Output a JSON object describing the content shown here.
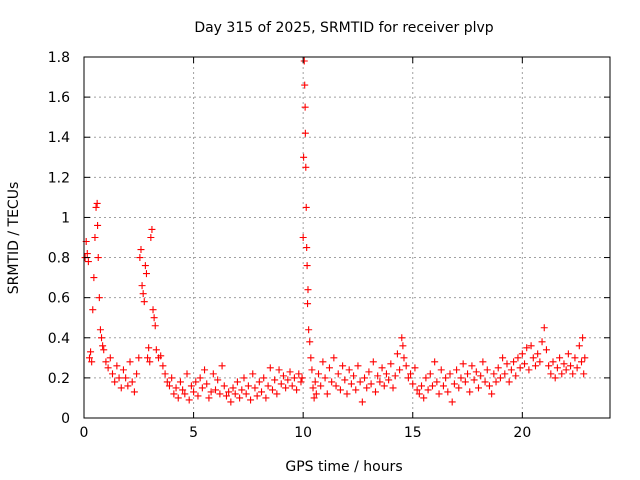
{
  "chart_data": {
    "type": "scatter",
    "title": "Day 315 of 2025, SRMTID for receiver plvp",
    "xlabel": "GPS time / hours",
    "ylabel": "SRMTID / TECUs",
    "xlim": [
      0,
      24
    ],
    "ylim": [
      0,
      1.8
    ],
    "xticks": [
      0,
      5,
      10,
      15,
      20
    ],
    "xtick_labels": [
      "0",
      "5",
      "10",
      "15",
      "20"
    ],
    "yticks": [
      0,
      0.2,
      0.4,
      0.6,
      0.8,
      1.0,
      1.2,
      1.4,
      1.6,
      1.8
    ],
    "ytick_labels": [
      "0",
      "0.2",
      "0.4",
      "0.6",
      "0.8",
      "1",
      "1.2",
      "1.4",
      "1.6",
      "1.8"
    ],
    "grid": true,
    "marker": "plus",
    "series": [
      {
        "name": "SRMTID",
        "color": "#ff0000",
        "points": [
          [
            0.05,
            0.8
          ],
          [
            0.1,
            0.88
          ],
          [
            0.15,
            0.82
          ],
          [
            0.2,
            0.78
          ],
          [
            0.25,
            0.3
          ],
          [
            0.3,
            0.33
          ],
          [
            0.35,
            0.28
          ],
          [
            0.4,
            0.54
          ],
          [
            0.45,
            0.7
          ],
          [
            0.5,
            0.9
          ],
          [
            0.55,
            1.05
          ],
          [
            0.6,
            1.07
          ],
          [
            0.62,
            0.96
          ],
          [
            0.65,
            0.8
          ],
          [
            0.7,
            0.6
          ],
          [
            0.75,
            0.44
          ],
          [
            0.8,
            0.4
          ],
          [
            0.85,
            0.36
          ],
          [
            0.9,
            0.34
          ],
          [
            1.0,
            0.28
          ],
          [
            1.1,
            0.25
          ],
          [
            1.2,
            0.3
          ],
          [
            1.3,
            0.22
          ],
          [
            1.4,
            0.18
          ],
          [
            1.5,
            0.26
          ],
          [
            1.6,
            0.2
          ],
          [
            1.7,
            0.15
          ],
          [
            1.8,
            0.24
          ],
          [
            1.9,
            0.2
          ],
          [
            2.0,
            0.16
          ],
          [
            2.1,
            0.28
          ],
          [
            2.2,
            0.18
          ],
          [
            2.3,
            0.13
          ],
          [
            2.4,
            0.22
          ],
          [
            2.5,
            0.3
          ],
          [
            2.55,
            0.8
          ],
          [
            2.6,
            0.84
          ],
          [
            2.65,
            0.66
          ],
          [
            2.7,
            0.62
          ],
          [
            2.75,
            0.58
          ],
          [
            2.8,
            0.76
          ],
          [
            2.85,
            0.72
          ],
          [
            2.9,
            0.3
          ],
          [
            2.95,
            0.35
          ],
          [
            3.0,
            0.28
          ],
          [
            3.05,
            0.9
          ],
          [
            3.1,
            0.94
          ],
          [
            3.15,
            0.54
          ],
          [
            3.2,
            0.5
          ],
          [
            3.25,
            0.46
          ],
          [
            3.3,
            0.34
          ],
          [
            3.4,
            0.3
          ],
          [
            3.5,
            0.31
          ],
          [
            3.6,
            0.26
          ],
          [
            3.7,
            0.22
          ],
          [
            3.8,
            0.18
          ],
          [
            3.9,
            0.16
          ],
          [
            4.0,
            0.2
          ],
          [
            4.1,
            0.12
          ],
          [
            4.2,
            0.15
          ],
          [
            4.3,
            0.1
          ],
          [
            4.4,
            0.18
          ],
          [
            4.5,
            0.14
          ],
          [
            4.6,
            0.12
          ],
          [
            4.7,
            0.22
          ],
          [
            4.8,
            0.09
          ],
          [
            4.9,
            0.16
          ],
          [
            5.0,
            0.13
          ],
          [
            5.1,
            0.18
          ],
          [
            5.2,
            0.11
          ],
          [
            5.3,
            0.2
          ],
          [
            5.4,
            0.15
          ],
          [
            5.5,
            0.24
          ],
          [
            5.6,
            0.17
          ],
          [
            5.7,
            0.1
          ],
          [
            5.8,
            0.13
          ],
          [
            5.9,
            0.22
          ],
          [
            6.0,
            0.14
          ],
          [
            6.1,
            0.19
          ],
          [
            6.2,
            0.12
          ],
          [
            6.3,
            0.26
          ],
          [
            6.4,
            0.16
          ],
          [
            6.5,
            0.11
          ],
          [
            6.6,
            0.13
          ],
          [
            6.7,
            0.08
          ],
          [
            6.8,
            0.15
          ],
          [
            6.9,
            0.12
          ],
          [
            7.0,
            0.18
          ],
          [
            7.1,
            0.1
          ],
          [
            7.2,
            0.14
          ],
          [
            7.3,
            0.2
          ],
          [
            7.4,
            0.12
          ],
          [
            7.5,
            0.16
          ],
          [
            7.6,
            0.09
          ],
          [
            7.7,
            0.22
          ],
          [
            7.8,
            0.15
          ],
          [
            7.9,
            0.11
          ],
          [
            8.0,
            0.18
          ],
          [
            8.1,
            0.13
          ],
          [
            8.2,
            0.2
          ],
          [
            8.3,
            0.1
          ],
          [
            8.4,
            0.16
          ],
          [
            8.5,
            0.25
          ],
          [
            8.6,
            0.14
          ],
          [
            8.7,
            0.19
          ],
          [
            8.8,
            0.12
          ],
          [
            8.9,
            0.24
          ],
          [
            9.0,
            0.17
          ],
          [
            9.1,
            0.21
          ],
          [
            9.2,
            0.15
          ],
          [
            9.3,
            0.19
          ],
          [
            9.4,
            0.23
          ],
          [
            9.5,
            0.16
          ],
          [
            9.6,
            0.2
          ],
          [
            9.7,
            0.14
          ],
          [
            9.8,
            0.22
          ],
          [
            9.9,
            0.18
          ],
          [
            9.95,
            0.2
          ],
          [
            10.0,
            0.9
          ],
          [
            10.02,
            1.3
          ],
          [
            10.05,
            1.78
          ],
          [
            10.07,
            1.66
          ],
          [
            10.09,
            1.55
          ],
          [
            10.1,
            1.42
          ],
          [
            10.12,
            1.25
          ],
          [
            10.14,
            1.05
          ],
          [
            10.16,
            0.85
          ],
          [
            10.18,
            0.76
          ],
          [
            10.2,
            0.57
          ],
          [
            10.22,
            0.64
          ],
          [
            10.25,
            0.44
          ],
          [
            10.3,
            0.38
          ],
          [
            10.35,
            0.3
          ],
          [
            10.4,
            0.24
          ],
          [
            10.45,
            0.15
          ],
          [
            10.5,
            0.1
          ],
          [
            10.55,
            0.18
          ],
          [
            10.6,
            0.12
          ],
          [
            10.7,
            0.22
          ],
          [
            10.8,
            0.16
          ],
          [
            10.9,
            0.28
          ],
          [
            11.0,
            0.2
          ],
          [
            11.1,
            0.12
          ],
          [
            11.2,
            0.25
          ],
          [
            11.3,
            0.18
          ],
          [
            11.4,
            0.3
          ],
          [
            11.5,
            0.16
          ],
          [
            11.6,
            0.22
          ],
          [
            11.7,
            0.14
          ],
          [
            11.8,
            0.26
          ],
          [
            11.9,
            0.19
          ],
          [
            12.0,
            0.12
          ],
          [
            12.1,
            0.24
          ],
          [
            12.2,
            0.17
          ],
          [
            12.3,
            0.21
          ],
          [
            12.4,
            0.14
          ],
          [
            12.5,
            0.26
          ],
          [
            12.6,
            0.18
          ],
          [
            12.7,
            0.08
          ],
          [
            12.8,
            0.2
          ],
          [
            12.9,
            0.15
          ],
          [
            13.0,
            0.23
          ],
          [
            13.1,
            0.17
          ],
          [
            13.2,
            0.28
          ],
          [
            13.3,
            0.13
          ],
          [
            13.4,
            0.21
          ],
          [
            13.5,
            0.18
          ],
          [
            13.6,
            0.25
          ],
          [
            13.7,
            0.16
          ],
          [
            13.8,
            0.22
          ],
          [
            13.9,
            0.19
          ],
          [
            14.0,
            0.27
          ],
          [
            14.1,
            0.15
          ],
          [
            14.2,
            0.21
          ],
          [
            14.3,
            0.32
          ],
          [
            14.4,
            0.24
          ],
          [
            14.5,
            0.4
          ],
          [
            14.55,
            0.36
          ],
          [
            14.6,
            0.3
          ],
          [
            14.7,
            0.26
          ],
          [
            14.8,
            0.2
          ],
          [
            14.9,
            0.22
          ],
          [
            15.0,
            0.17
          ],
          [
            15.1,
            0.25
          ],
          [
            15.2,
            0.14
          ],
          [
            15.3,
            0.12
          ],
          [
            15.4,
            0.16
          ],
          [
            15.5,
            0.1
          ],
          [
            15.6,
            0.2
          ],
          [
            15.7,
            0.14
          ],
          [
            15.8,
            0.22
          ],
          [
            15.9,
            0.16
          ],
          [
            16.0,
            0.28
          ],
          [
            16.1,
            0.18
          ],
          [
            16.2,
            0.12
          ],
          [
            16.3,
            0.24
          ],
          [
            16.4,
            0.16
          ],
          [
            16.5,
            0.2
          ],
          [
            16.6,
            0.13
          ],
          [
            16.7,
            0.22
          ],
          [
            16.8,
            0.08
          ],
          [
            16.9,
            0.17
          ],
          [
            17.0,
            0.24
          ],
          [
            17.1,
            0.15
          ],
          [
            17.2,
            0.2
          ],
          [
            17.3,
            0.27
          ],
          [
            17.4,
            0.18
          ],
          [
            17.5,
            0.22
          ],
          [
            17.6,
            0.13
          ],
          [
            17.7,
            0.26
          ],
          [
            17.8,
            0.19
          ],
          [
            17.9,
            0.23
          ],
          [
            18.0,
            0.15
          ],
          [
            18.1,
            0.21
          ],
          [
            18.2,
            0.28
          ],
          [
            18.3,
            0.18
          ],
          [
            18.4,
            0.24
          ],
          [
            18.5,
            0.16
          ],
          [
            18.6,
            0.12
          ],
          [
            18.7,
            0.22
          ],
          [
            18.8,
            0.18
          ],
          [
            18.9,
            0.25
          ],
          [
            19.0,
            0.2
          ],
          [
            19.1,
            0.3
          ],
          [
            19.2,
            0.22
          ],
          [
            19.3,
            0.27
          ],
          [
            19.4,
            0.18
          ],
          [
            19.5,
            0.24
          ],
          [
            19.6,
            0.28
          ],
          [
            19.7,
            0.21
          ],
          [
            19.8,
            0.3
          ],
          [
            19.9,
            0.25
          ],
          [
            20.0,
            0.32
          ],
          [
            20.1,
            0.27
          ],
          [
            20.2,
            0.35
          ],
          [
            20.3,
            0.24
          ],
          [
            20.4,
            0.36
          ],
          [
            20.5,
            0.3
          ],
          [
            20.6,
            0.26
          ],
          [
            20.7,
            0.32
          ],
          [
            20.8,
            0.28
          ],
          [
            20.9,
            0.38
          ],
          [
            21.0,
            0.45
          ],
          [
            21.1,
            0.34
          ],
          [
            21.2,
            0.26
          ],
          [
            21.3,
            0.22
          ],
          [
            21.4,
            0.28
          ],
          [
            21.5,
            0.2
          ],
          [
            21.6,
            0.25
          ],
          [
            21.7,
            0.3
          ],
          [
            21.8,
            0.22
          ],
          [
            21.9,
            0.27
          ],
          [
            22.0,
            0.24
          ],
          [
            22.1,
            0.32
          ],
          [
            22.2,
            0.26
          ],
          [
            22.3,
            0.22
          ],
          [
            22.4,
            0.3
          ],
          [
            22.5,
            0.25
          ],
          [
            22.6,
            0.36
          ],
          [
            22.7,
            0.28
          ],
          [
            22.75,
            0.4
          ],
          [
            22.8,
            0.22
          ],
          [
            22.85,
            0.3
          ]
        ]
      }
    ]
  }
}
